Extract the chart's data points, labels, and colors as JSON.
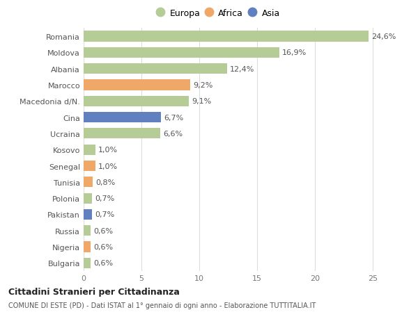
{
  "countries": [
    "Romania",
    "Moldova",
    "Albania",
    "Marocco",
    "Macedonia d/N.",
    "Cina",
    "Ucraina",
    "Kosovo",
    "Senegal",
    "Tunisia",
    "Polonia",
    "Pakistan",
    "Russia",
    "Nigeria",
    "Bulgaria"
  ],
  "values": [
    24.6,
    16.9,
    12.4,
    9.2,
    9.1,
    6.7,
    6.6,
    1.0,
    1.0,
    0.8,
    0.7,
    0.7,
    0.6,
    0.6,
    0.6
  ],
  "labels": [
    "24,6%",
    "16,9%",
    "12,4%",
    "9,2%",
    "9,1%",
    "6,7%",
    "6,6%",
    "1,0%",
    "1,0%",
    "0,8%",
    "0,7%",
    "0,7%",
    "0,6%",
    "0,6%",
    "0,6%"
  ],
  "continents": [
    "Europa",
    "Europa",
    "Europa",
    "Africa",
    "Europa",
    "Asia",
    "Europa",
    "Europa",
    "Africa",
    "Africa",
    "Europa",
    "Asia",
    "Europa",
    "Africa",
    "Europa"
  ],
  "colors": {
    "Europa": "#b5cc96",
    "Africa": "#f0a868",
    "Asia": "#6080c0"
  },
  "title_bold": "Cittadini Stranieri per Cittadinanza",
  "title_sub": "COMUNE DI ESTE (PD) - Dati ISTAT al 1° gennaio di ogni anno - Elaborazione TUTTITALIA.IT",
  "xlim": [
    0,
    26
  ],
  "xticks": [
    0,
    5,
    10,
    15,
    20,
    25
  ],
  "background_color": "#ffffff",
  "grid_color": "#dddddd",
  "label_fontsize": 8,
  "tick_fontsize": 8,
  "legend_fontsize": 9,
  "bar_height": 0.65
}
